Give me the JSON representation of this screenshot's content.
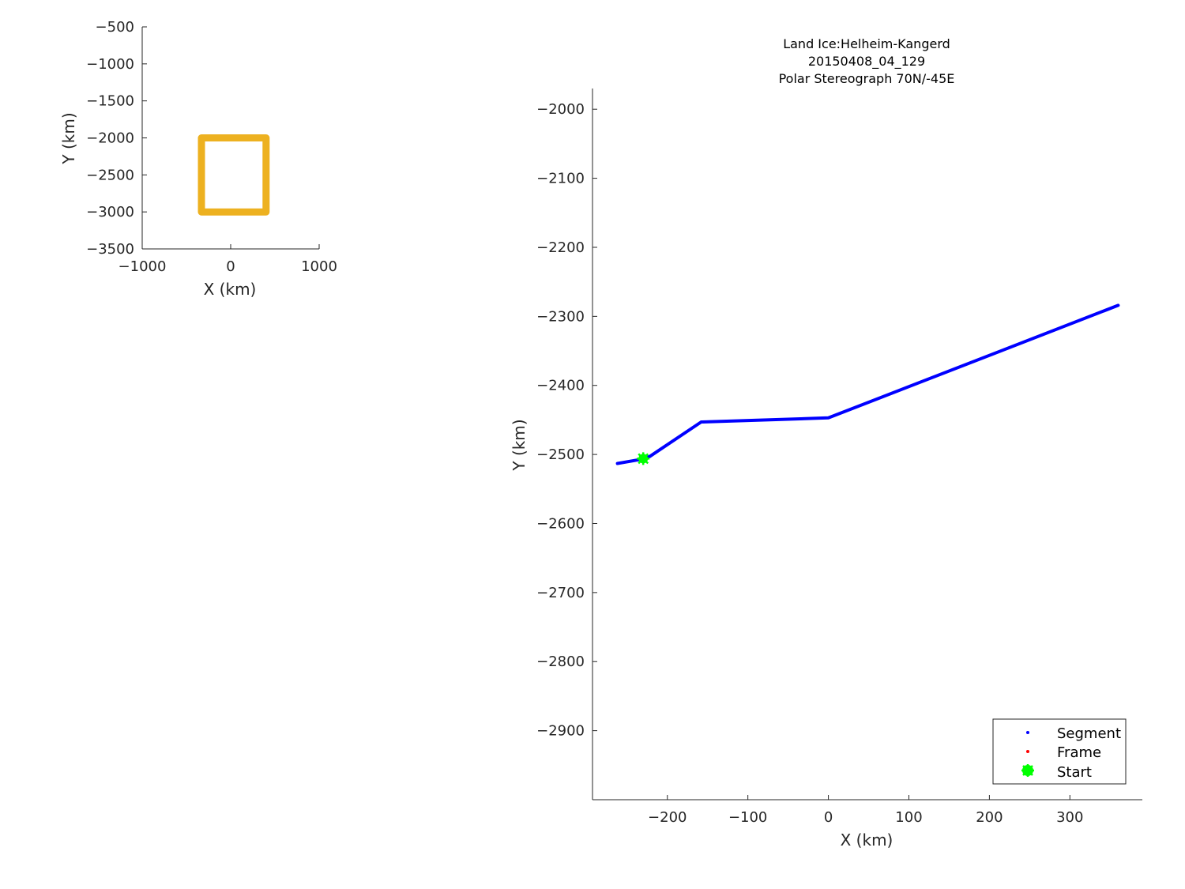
{
  "chart_data": [
    {
      "type": "line",
      "panel": "overview",
      "title": "",
      "xlabel": "X (km)",
      "ylabel": "Y (km)",
      "xlim": [
        -1000,
        1000
      ],
      "ylim": [
        -3500,
        -500
      ],
      "xticks": [
        -1000,
        0,
        1000
      ],
      "yticks": [
        -3500,
        -3000,
        -2500,
        -2000,
        -1500,
        -1000,
        -500
      ],
      "xtick_labels": [
        "−1000",
        "0",
        "1000"
      ],
      "ytick_labels": [
        "−3500",
        "−3000",
        "−2500",
        "−2000",
        "−1500",
        "−1000",
        "−500"
      ],
      "grid": false,
      "series": [
        {
          "color": "#edb120",
          "x": [
            -330,
            -330,
            400,
            400,
            -330
          ],
          "y": [
            -2000,
            -3000,
            -3000,
            -2000,
            -2000
          ]
        }
      ]
    },
    {
      "type": "line",
      "panel": "detail",
      "title": [
        "Land Ice:Helheim-Kangerd",
        "20150408_04_129",
        "Polar Stereograph 70N/-45E"
      ],
      "xlabel": "X (km)",
      "ylabel": "Y (km)",
      "xlim": [
        -293,
        390
      ],
      "ylim": [
        -3000,
        -1970
      ],
      "xticks": [
        -200,
        -100,
        0,
        100,
        200,
        300
      ],
      "yticks": [
        -2900,
        -2800,
        -2700,
        -2600,
        -2500,
        -2400,
        -2300,
        -2200,
        -2100,
        -2000
      ],
      "xtick_labels": [
        "−200",
        "−100",
        "0",
        "100",
        "200",
        "300"
      ],
      "ytick_labels": [
        "−2900",
        "−2800",
        "−2700",
        "−2600",
        "−2500",
        "−2400",
        "−2300",
        "−2200",
        "−2100",
        "−2000"
      ],
      "grid": false,
      "legend_position": "bottom-right",
      "legend": [
        {
          "label": "Segment",
          "color": "#0000ff",
          "marker": "dot"
        },
        {
          "label": "Frame",
          "color": "#ff0000",
          "marker": "dot"
        },
        {
          "label": "Start",
          "color": "#00ff00",
          "marker": "asterisk"
        }
      ],
      "series": [
        {
          "name": "Segment",
          "color": "#0000ff",
          "x": [
            -262,
            -232,
            -222,
            -158,
            0,
            360
          ],
          "y": [
            -2513,
            -2507,
            -2503,
            -2453,
            -2447,
            -2284
          ]
        }
      ],
      "start_point": {
        "x": -230,
        "y": -2506
      }
    }
  ]
}
